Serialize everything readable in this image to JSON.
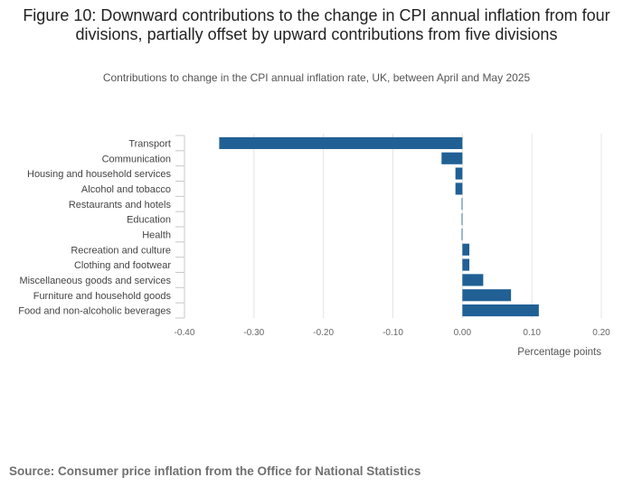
{
  "title": "Figure 10: Downward contributions to the change in CPI annual inflation from four divisions, partially offset by upward contributions from five divisions",
  "subtitle": "Contributions to change in the CPI annual inflation rate, UK, between April and May 2025",
  "source": "Source: Consumer price inflation from the Office for National Statistics",
  "chart_data": {
    "type": "bar",
    "orientation": "horizontal",
    "title": "Figure 10: Downward contributions to the change in CPI annual inflation from four divisions, partially offset by upward contributions from five divisions",
    "subtitle": "Contributions to change in the CPI annual inflation rate, UK, between April and May 2025",
    "categories": [
      "Transport",
      "Communication",
      "Housing and household services",
      "Alcohol and tobacco",
      "Restaurants and hotels",
      "Education",
      "Health",
      "Recreation and culture",
      "Clothing and footwear",
      "Miscellaneous goods and services",
      "Furniture and household goods",
      "Food and non-alcoholic beverages"
    ],
    "values": [
      -0.35,
      -0.03,
      -0.01,
      -0.01,
      -0.001,
      -0.001,
      -0.001,
      0.01,
      0.01,
      0.03,
      0.07,
      0.11
    ],
    "xlabel": "Percentage points",
    "ylabel": "",
    "xlim": [
      -0.4,
      0.2
    ],
    "xticks": [
      -0.4,
      -0.3,
      -0.2,
      -0.1,
      0.0,
      0.1,
      0.2
    ],
    "xtick_labels": [
      "-0.40",
      "-0.30",
      "-0.20",
      "-0.10",
      "0.00",
      "0.10",
      "0.20"
    ],
    "bar_color": "#206095",
    "grid": true
  }
}
